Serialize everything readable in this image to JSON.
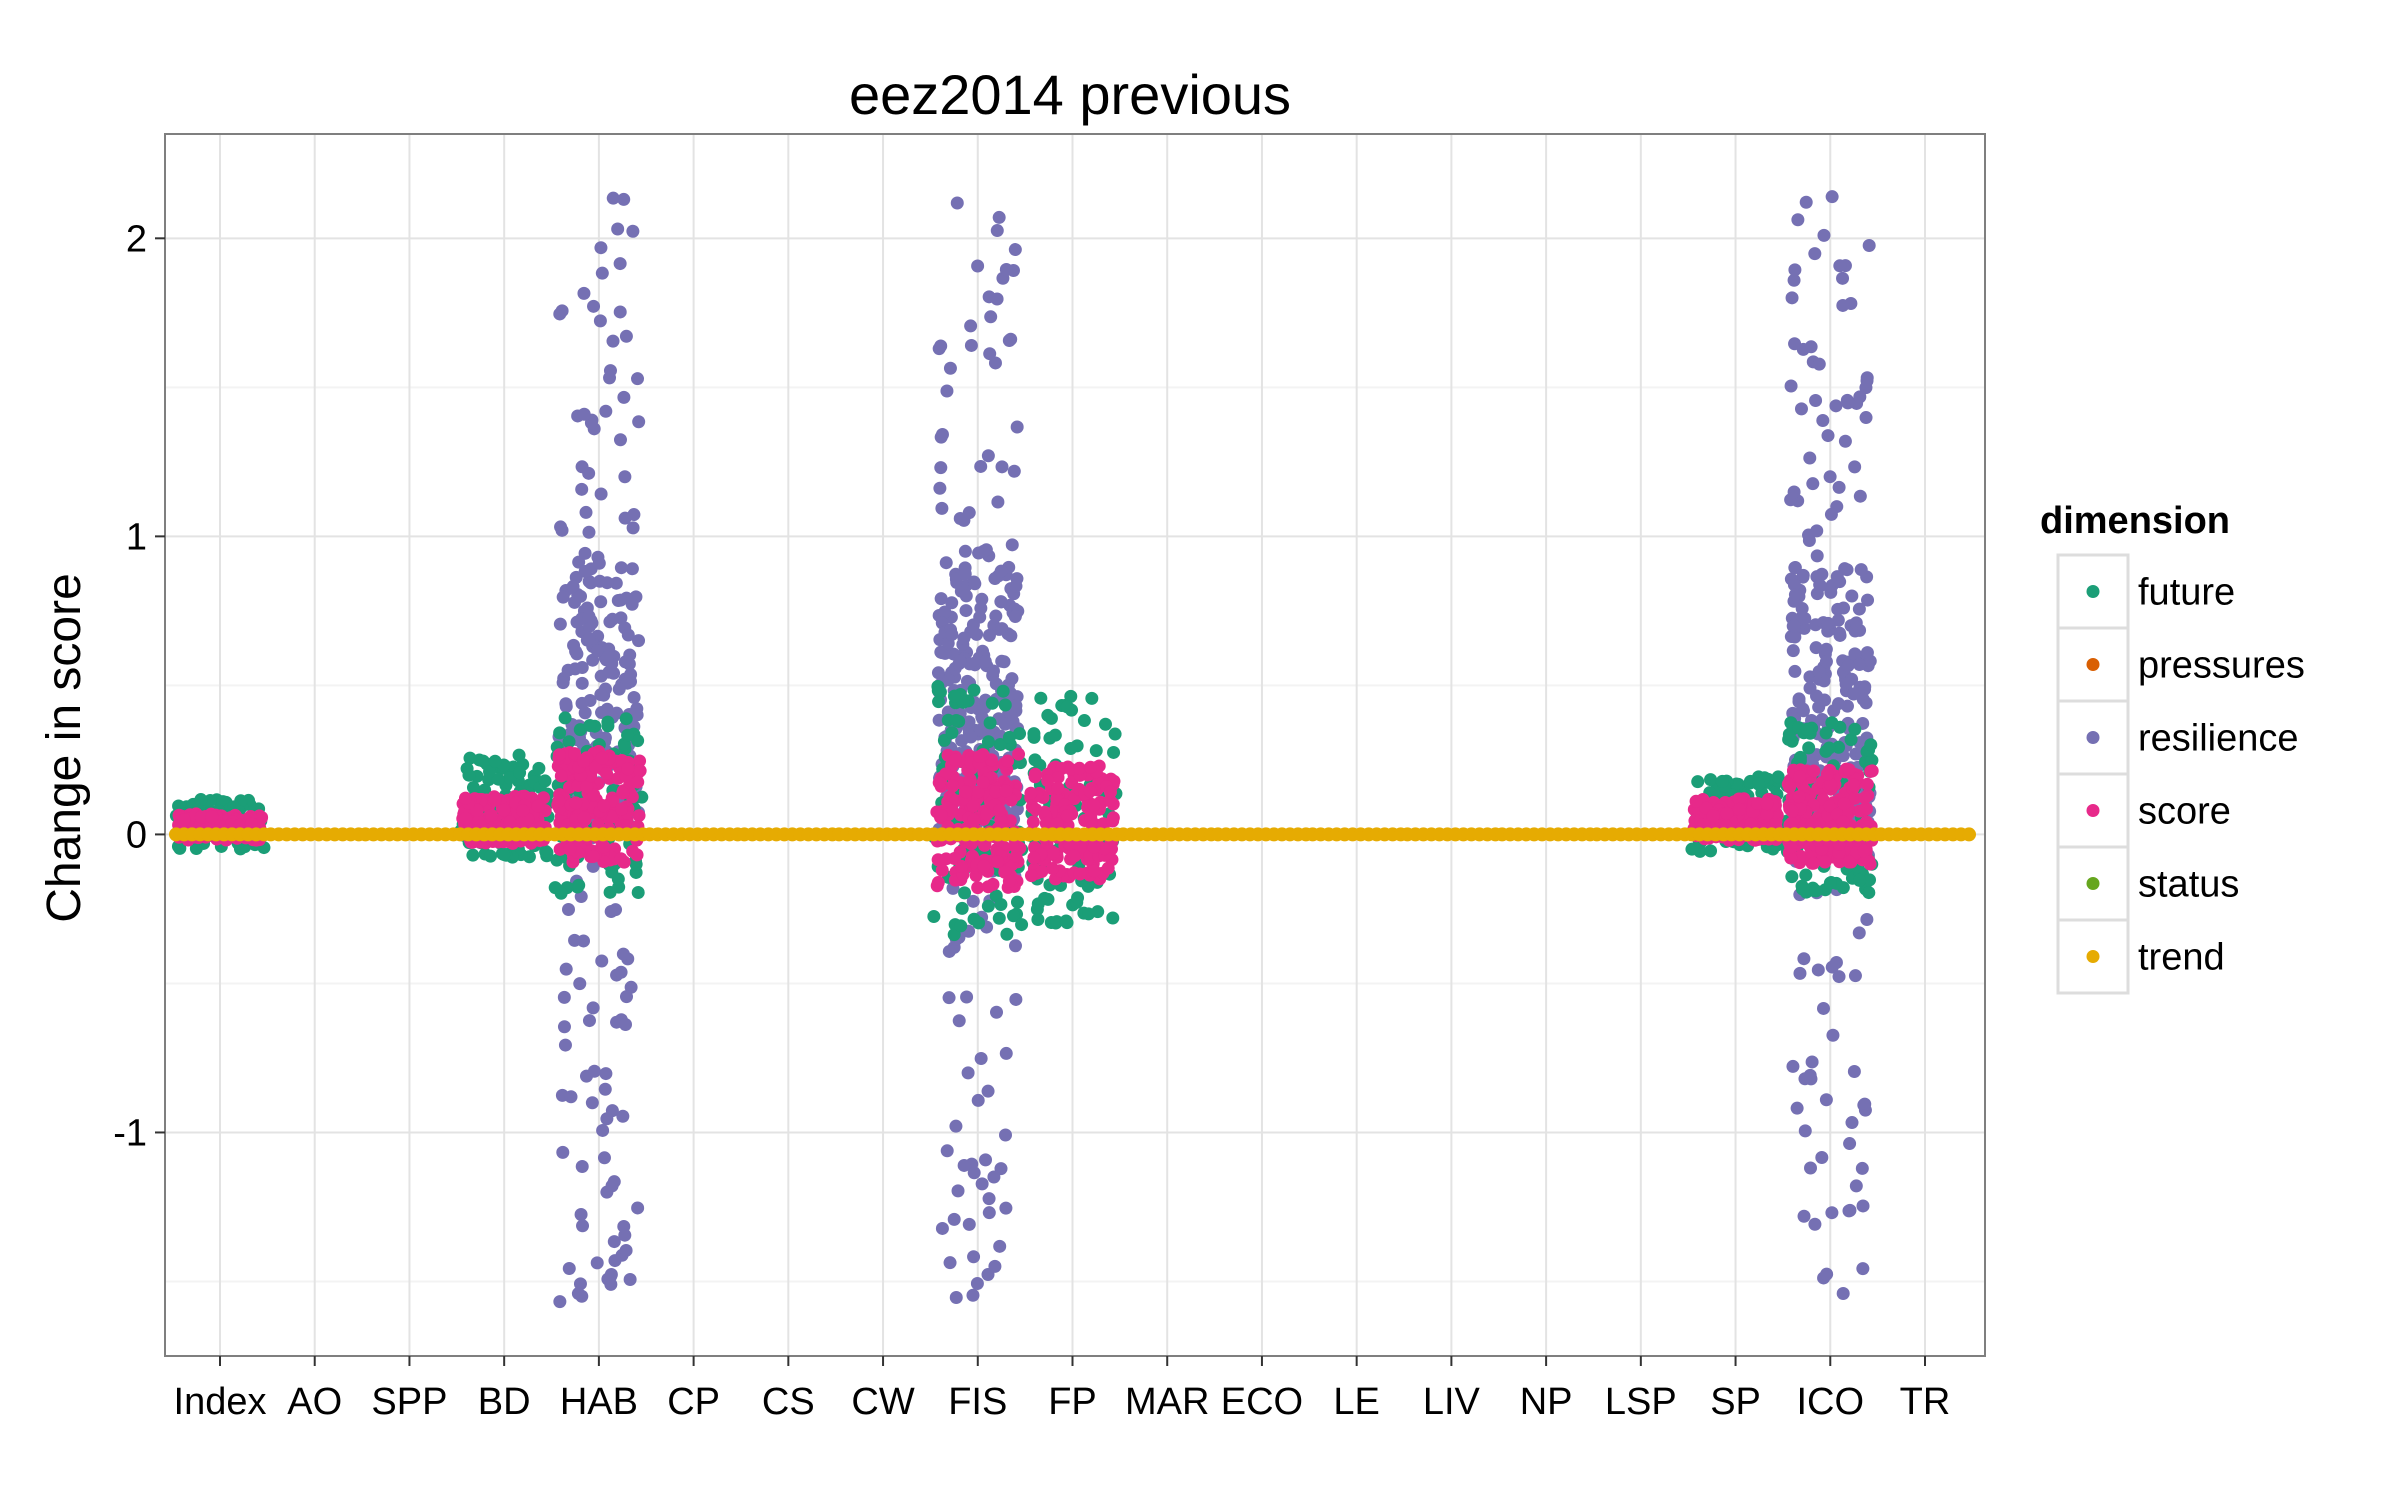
{
  "chart_data": {
    "type": "scatter",
    "title": "eez2014 previous",
    "xlabel": "",
    "ylabel": "Change in score",
    "ylim": [
      -1.75,
      2.35
    ],
    "yticks": [
      -1,
      0,
      1,
      2
    ],
    "grid": true,
    "legend_position": "right",
    "legend_title": "dimension",
    "categories": [
      "Index",
      "AO",
      "SPP",
      "BD",
      "HAB",
      "CP",
      "CS",
      "CW",
      "FIS",
      "FP",
      "MAR",
      "ECO",
      "LE",
      "LIV",
      "NP",
      "LSP",
      "SP",
      "ICO",
      "TR"
    ],
    "series": [
      {
        "name": "future",
        "color": "#1B9E77",
        "ranges": {
          "Index": [
            -0.05,
            0.12
          ],
          "BD": [
            -0.08,
            0.27
          ],
          "HAB": [
            -0.2,
            0.4
          ],
          "FIS": [
            -0.34,
            0.5
          ],
          "FP": [
            -0.3,
            0.47
          ],
          "SP": [
            -0.08,
            0.2
          ],
          "ICO": [
            -0.2,
            0.38
          ]
        }
      },
      {
        "name": "pressures",
        "color": "#D95F02",
        "ranges": {}
      },
      {
        "name": "resilience",
        "color": "#7570B3",
        "ranges": {
          "HAB": [
            -1.57,
            2.15
          ],
          "FIS": [
            -1.57,
            2.15
          ],
          "ICO": [
            -1.57,
            2.15
          ]
        }
      },
      {
        "name": "score",
        "color": "#E7298A",
        "ranges": {
          "Index": [
            -0.02,
            0.07
          ],
          "BD": [
            -0.03,
            0.13
          ],
          "HAB": [
            -0.1,
            0.28
          ],
          "FIS": [
            -0.18,
            0.27
          ],
          "FP": [
            -0.15,
            0.23
          ],
          "SP": [
            -0.02,
            0.12
          ],
          "ICO": [
            -0.1,
            0.22
          ]
        }
      },
      {
        "name": "status",
        "color": "#66A61E",
        "ranges": {}
      },
      {
        "name": "trend",
        "color": "#E6AB02",
        "ranges": {
          "Index": [
            0,
            0
          ],
          "AO": [
            0,
            0
          ],
          "SPP": [
            0,
            0
          ],
          "BD": [
            0,
            0
          ],
          "HAB": [
            0,
            0
          ],
          "CP": [
            0,
            0
          ],
          "CS": [
            0,
            0
          ],
          "CW": [
            0,
            0
          ],
          "FIS": [
            0,
            0
          ],
          "FP": [
            0,
            0
          ],
          "MAR": [
            0,
            0
          ],
          "ECO": [
            0,
            0
          ],
          "LE": [
            0,
            0
          ],
          "LIV": [
            0,
            0
          ],
          "NP": [
            0,
            0
          ],
          "LSP": [
            0,
            0
          ],
          "SP": [
            0,
            0
          ],
          "ICO": [
            0,
            0
          ],
          "TR": [
            0,
            0
          ]
        }
      }
    ]
  }
}
